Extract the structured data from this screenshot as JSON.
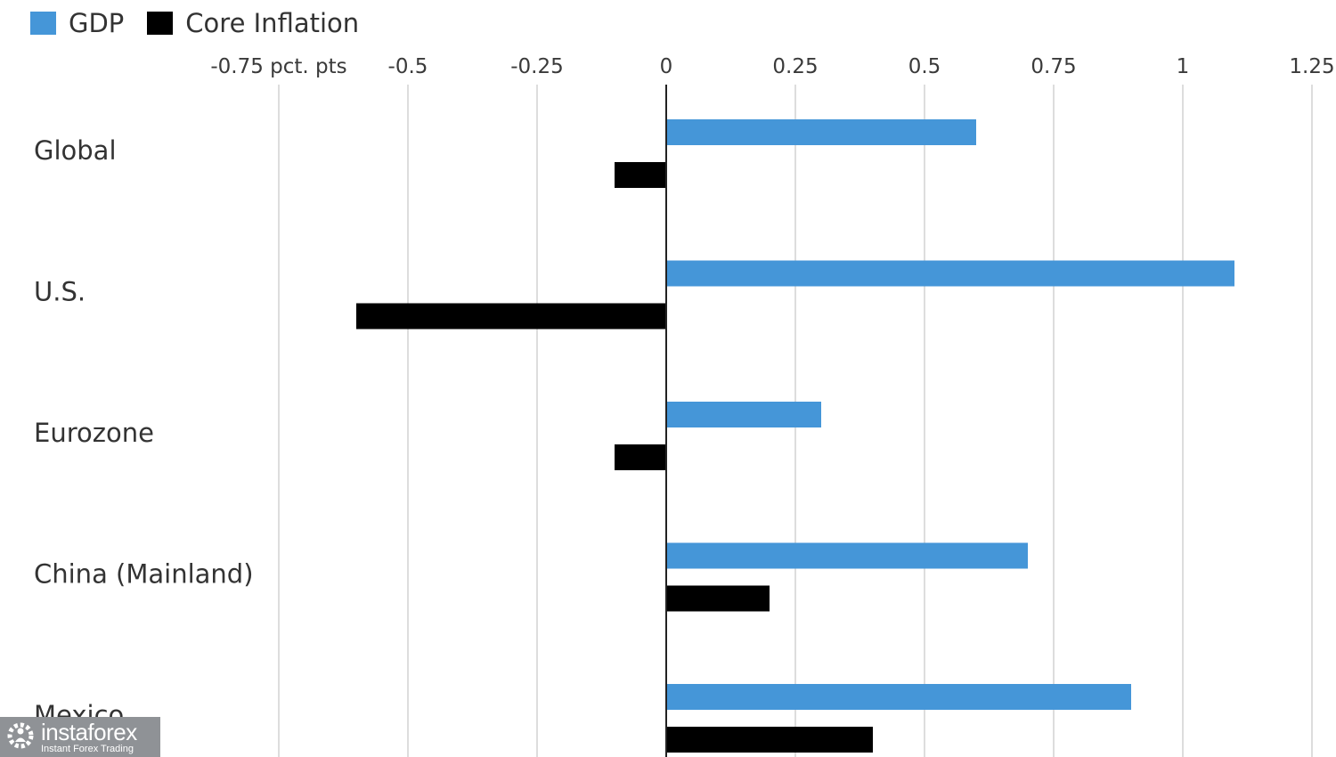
{
  "chart_data": {
    "type": "bar",
    "orientation": "horizontal",
    "categories": [
      "Global",
      "U.S.",
      "Eurozone",
      "China (Mainland)",
      "Mexico"
    ],
    "series": [
      {
        "name": "GDP",
        "color": "#4596d8",
        "values": [
          0.6,
          1.1,
          0.3,
          0.7,
          0.9
        ]
      },
      {
        "name": "Core Inflation",
        "color": "#000000",
        "values": [
          -0.1,
          -0.6,
          -0.1,
          0.2,
          0.4
        ]
      }
    ],
    "xticks": [
      {
        "value": -0.75,
        "label": "-0.75 pct. pts"
      },
      {
        "value": -0.5,
        "label": "-0.5"
      },
      {
        "value": -0.25,
        "label": "-0.25"
      },
      {
        "value": 0,
        "label": "0"
      },
      {
        "value": 0.25,
        "label": "0.25"
      },
      {
        "value": 0.5,
        "label": "0.5"
      },
      {
        "value": 0.75,
        "label": "0.75"
      },
      {
        "value": 1,
        "label": "1"
      },
      {
        "value": 1.25,
        "label": "1.25"
      }
    ],
    "xlim": [
      -0.75,
      1.25
    ],
    "grid": "vertical",
    "legend_position": "top-left",
    "gridline_color": "#dddddd"
  },
  "watermark": {
    "brand": "instaforex",
    "tagline": "Instant Forex Trading",
    "icon": "gear-person-icon"
  }
}
